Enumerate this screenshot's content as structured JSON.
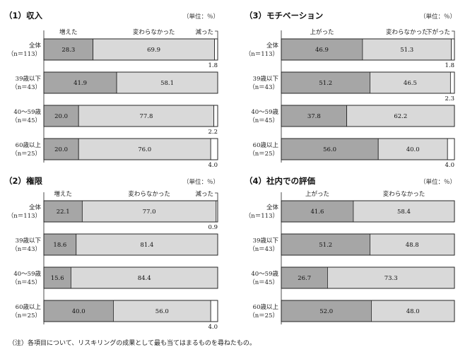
{
  "unit_label": "（単位：％）",
  "note": "（注）各項目について、リスキリングの成果として最も当てはまるものを尋ねたもの。",
  "colors": {
    "s1": "#a6a6a6",
    "s2": "#d9d9d9",
    "s3": "#ffffff",
    "stroke": "#222222"
  },
  "chart_data": [
    {
      "id": "income",
      "type": "bar",
      "stacked": "horizontal-100",
      "title": "（1）収入",
      "legend": [
        "増えた",
        "変わらなかった",
        "減った"
      ],
      "categories": [
        "全体（n＝113）",
        "39歳以下（n＝43）",
        "40～59歳（n＝45）",
        "60歳以上（n＝25）"
      ],
      "cat_line1": [
        "全体",
        "39歳以下",
        "40～59歳",
        "60歳以上"
      ],
      "cat_line2": [
        "（n＝113）",
        "（n＝43）",
        "（n＝45）",
        "（n＝25）"
      ],
      "series": [
        {
          "name": "増えた",
          "values": [
            28.3,
            41.9,
            20.0,
            20.0
          ]
        },
        {
          "name": "変わらなかった",
          "values": [
            69.9,
            58.1,
            77.8,
            76.0
          ]
        },
        {
          "name": "減った",
          "values": [
            1.8,
            0.0,
            2.2,
            4.0
          ]
        }
      ],
      "labels": [
        [
          "28.3",
          "69.9",
          "1.8"
        ],
        [
          "41.9",
          "58.1",
          ""
        ],
        [
          "20.0",
          "77.8",
          "2.2"
        ],
        [
          "20.0",
          "76.0",
          "4.0"
        ]
      ]
    },
    {
      "id": "authority",
      "type": "bar",
      "stacked": "horizontal-100",
      "title": "（2）権限",
      "legend": [
        "増えた",
        "変わらなかった",
        "減った"
      ],
      "categories": [
        "全体（n＝113）",
        "39歳以下（n＝43）",
        "40～59歳（n＝45）",
        "60歳以上（n＝25）"
      ],
      "cat_line1": [
        "全体",
        "39歳以下",
        "40～59歳",
        "60歳以上"
      ],
      "cat_line2": [
        "（n＝113）",
        "（n＝43）",
        "（n＝45）",
        "（n＝25）"
      ],
      "series": [
        {
          "name": "増えた",
          "values": [
            22.1,
            18.6,
            15.6,
            40.0
          ]
        },
        {
          "name": "変わらなかった",
          "values": [
            77.0,
            81.4,
            84.4,
            56.0
          ]
        },
        {
          "name": "減った",
          "values": [
            0.9,
            0.0,
            0.0,
            4.0
          ]
        }
      ],
      "labels": [
        [
          "22.1",
          "77.0",
          "0.9"
        ],
        [
          "18.6",
          "81.4",
          ""
        ],
        [
          "15.6",
          "84.4",
          ""
        ],
        [
          "40.0",
          "56.0",
          "4.0"
        ]
      ]
    },
    {
      "id": "motivation",
      "type": "bar",
      "stacked": "horizontal-100",
      "title": "（3）モチベーション",
      "legend": [
        "上がった",
        "変わらなかった",
        "下がった"
      ],
      "categories": [
        "全体（n＝113）",
        "39歳以下（n＝43）",
        "40～59歳（n＝45）",
        "60歳以上（n＝25）"
      ],
      "cat_line1": [
        "全体",
        "39歳以下",
        "40～59歳",
        "60歳以上"
      ],
      "cat_line2": [
        "（n＝113）",
        "（n＝43）",
        "（n＝45）",
        "（n＝25）"
      ],
      "series": [
        {
          "name": "上がった",
          "values": [
            46.9,
            51.2,
            37.8,
            56.0
          ]
        },
        {
          "name": "変わらなかった",
          "values": [
            51.3,
            46.5,
            62.2,
            40.0
          ]
        },
        {
          "name": "下がった",
          "values": [
            1.8,
            2.3,
            0.0,
            4.0
          ]
        }
      ],
      "labels": [
        [
          "46.9",
          "51.3",
          "1.8"
        ],
        [
          "51.2",
          "46.5",
          "2.3"
        ],
        [
          "37.8",
          "62.2",
          ""
        ],
        [
          "56.0",
          "40.0",
          "4.0"
        ]
      ]
    },
    {
      "id": "evaluation",
      "type": "bar",
      "stacked": "horizontal-100",
      "title": "（4）社内での評価",
      "legend": [
        "上がった",
        "変わらなかった"
      ],
      "categories": [
        "全体（n＝113）",
        "39歳以下（n＝43）",
        "40～59歳（n＝45）",
        "60歳以上（n＝25）"
      ],
      "cat_line1": [
        "全体",
        "39歳以下",
        "40～59歳",
        "60歳以上"
      ],
      "cat_line2": [
        "（n＝113）",
        "（n＝43）",
        "（n＝45）",
        "（n＝25）"
      ],
      "series": [
        {
          "name": "上がった",
          "values": [
            41.6,
            51.2,
            26.7,
            52.0
          ]
        },
        {
          "name": "変わらなかった",
          "values": [
            58.4,
            48.8,
            73.3,
            48.0
          ]
        }
      ],
      "labels": [
        [
          "41.6",
          "58.4"
        ],
        [
          "51.2",
          "48.8"
        ],
        [
          "26.7",
          "73.3"
        ],
        [
          "52.0",
          "48.0"
        ]
      ]
    }
  ]
}
